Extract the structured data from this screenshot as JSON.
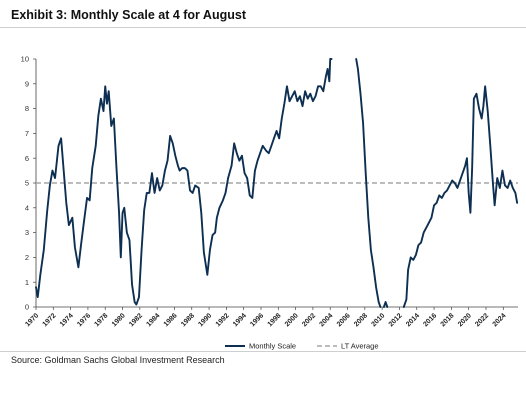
{
  "title": "Exhibit 3: Monthly Scale at 4 for August",
  "source": "Source: Goldman Sachs Global Investment Research",
  "colors": {
    "series": "#0d2f52",
    "average": "#a6a6a6",
    "axis": "#444444"
  },
  "chart_data": {
    "type": "line",
    "title": "",
    "xlabel": "",
    "ylabel": "",
    "xlim": [
      1970,
      2025.7
    ],
    "ylim": [
      0,
      10
    ],
    "grid": false,
    "legend": "bottom-center",
    "y_ticks": [
      "0",
      "1",
      "2",
      "3",
      "4",
      "5",
      "6",
      "7",
      "8",
      "9",
      "10"
    ],
    "x_ticks": [
      "1970",
      "1972",
      "1974",
      "1976",
      "1978",
      "1980",
      "1982",
      "1984",
      "1986",
      "1988",
      "1990",
      "1992",
      "1994",
      "1996",
      "1998",
      "2000",
      "2002",
      "2004",
      "2006",
      "2008",
      "2010",
      "2012",
      "2014",
      "2016",
      "2018",
      "2020",
      "2022",
      "2024"
    ],
    "series": [
      {
        "name": "Monthly Scale",
        "style": "solid",
        "x": [
          1970.0,
          1970.2,
          1970.5,
          1970.9,
          1971.3,
          1971.6,
          1971.9,
          1972.2,
          1972.6,
          1972.9,
          1973.2,
          1973.5,
          1973.8,
          1974.2,
          1974.5,
          1974.9,
          1975.2,
          1975.6,
          1975.9,
          1976.2,
          1976.5,
          1976.9,
          1977.2,
          1977.5,
          1977.8,
          1978.0,
          1978.2,
          1978.4,
          1978.7,
          1979.0,
          1979.3,
          1979.6,
          1979.8,
          1980.0,
          1980.2,
          1980.5,
          1980.8,
          1981.1,
          1981.4,
          1981.6,
          1981.9,
          1982.2,
          1982.5,
          1982.8,
          1983.1,
          1983.4,
          1983.7,
          1984.0,
          1984.3,
          1984.6,
          1984.9,
          1985.2,
          1985.5,
          1985.8,
          1986.1,
          1986.4,
          1986.6,
          1986.9,
          1987.2,
          1987.5,
          1987.8,
          1988.1,
          1988.4,
          1988.8,
          1989.1,
          1989.4,
          1989.8,
          1990.1,
          1990.4,
          1990.7,
          1990.9,
          1991.2,
          1991.6,
          1991.9,
          1992.2,
          1992.6,
          1992.9,
          1993.2,
          1993.5,
          1993.8,
          1994.1,
          1994.4,
          1994.7,
          1995.0,
          1995.3,
          1995.6,
          1995.9,
          1996.2,
          1996.6,
          1996.9,
          1997.2,
          1997.5,
          1997.8,
          1998.1,
          1998.4,
          1998.7,
          1999.0,
          1999.3,
          1999.6,
          1999.9,
          2000.2,
          2000.5,
          2000.8,
          2001.1,
          2001.4,
          2001.7,
          2002.0,
          2002.3,
          2002.6,
          2002.9,
          2003.2,
          2003.5,
          2003.7,
          2003.9,
          2004.0,
          2004.15
        ],
        "y": [
          0.8,
          0.4,
          1.3,
          2.3,
          3.9,
          4.9,
          5.5,
          5.2,
          6.5,
          6.8,
          5.5,
          4.2,
          3.3,
          3.6,
          2.4,
          1.6,
          2.5,
          3.6,
          4.4,
          4.3,
          5.6,
          6.5,
          7.7,
          8.4,
          7.9,
          8.9,
          8.2,
          8.7,
          7.3,
          7.6,
          5.6,
          3.8,
          2.0,
          3.8,
          4.0,
          3.0,
          2.7,
          0.9,
          0.2,
          0.1,
          0.4,
          2.3,
          3.9,
          4.6,
          4.6,
          5.4,
          4.6,
          5.2,
          4.7,
          4.9,
          5.5,
          5.9,
          6.9,
          6.6,
          6.1,
          5.7,
          5.5,
          5.6,
          5.6,
          5.5,
          4.7,
          4.6,
          4.9,
          4.8,
          3.8,
          2.2,
          1.3,
          2.3,
          2.9,
          3.0,
          3.6,
          4.0,
          4.3,
          4.6,
          5.2,
          5.7,
          6.6,
          6.2,
          5.9,
          6.1,
          5.4,
          5.2,
          4.5,
          4.4,
          5.5,
          5.9,
          6.2,
          6.5,
          6.3,
          6.2,
          6.5,
          6.8,
          7.1,
          6.8,
          7.6,
          8.2,
          8.9,
          8.3,
          8.5,
          8.7,
          8.3,
          8.5,
          8.1,
          8.7,
          8.4,
          8.6,
          8.3,
          8.5,
          8.9,
          8.9,
          8.7,
          9.3,
          9.6,
          9.1,
          10.0,
          10.0
        ]
      },
      {
        "name": "Monthly Scale",
        "style": "solid",
        "x": [
          2007.0,
          2007.2,
          2007.5,
          2007.8,
          2008.1,
          2008.4,
          2008.7,
          2009.0,
          2009.3,
          2009.6,
          2009.8
        ],
        "y": [
          10.0,
          9.6,
          8.6,
          7.4,
          5.4,
          3.6,
          2.3,
          1.6,
          0.8,
          0.2,
          0.0
        ]
      },
      {
        "name": "Monthly Scale",
        "style": "solid",
        "x": [
          2010.2,
          2010.4,
          2010.6
        ],
        "y": [
          0.0,
          0.2,
          0.0
        ]
      },
      {
        "name": "Monthly Scale",
        "style": "solid",
        "x": [
          2012.5,
          2012.8,
          2013.0,
          2013.3,
          2013.6,
          2013.9,
          2014.2,
          2014.5,
          2014.8,
          2015.1,
          2015.4,
          2015.7,
          2016.0,
          2016.3,
          2016.6,
          2016.9,
          2017.2,
          2017.5,
          2017.8,
          2018.1,
          2018.4,
          2018.7,
          2019.0,
          2019.3,
          2019.6,
          2019.8,
          2020.0,
          2020.2,
          2020.4,
          2020.6,
          2020.9,
          2021.2,
          2021.5,
          2021.7,
          2021.9,
          2022.2,
          2022.5,
          2022.8,
          2023.0,
          2023.3,
          2023.6,
          2023.9,
          2024.2,
          2024.5,
          2024.8,
          2025.1,
          2025.4,
          2025.6
        ],
        "y": [
          0.0,
          0.3,
          1.5,
          2.0,
          1.9,
          2.1,
          2.5,
          2.6,
          3.0,
          3.2,
          3.4,
          3.6,
          4.1,
          4.2,
          4.5,
          4.4,
          4.6,
          4.7,
          4.9,
          5.1,
          5.0,
          4.8,
          5.1,
          5.4,
          5.7,
          6.0,
          4.6,
          3.8,
          5.6,
          8.4,
          8.6,
          8.0,
          7.6,
          8.1,
          8.9,
          7.9,
          6.5,
          5.0,
          4.1,
          5.2,
          4.8,
          5.5,
          4.9,
          4.8,
          5.1,
          4.8,
          4.6,
          4.2
        ]
      },
      {
        "name": "LT Average",
        "style": "dashed",
        "x": [
          1970,
          2025.7
        ],
        "y": [
          5.0,
          5.0
        ]
      }
    ]
  },
  "legend": [
    {
      "label": "Monthly Scale",
      "style": "solid"
    },
    {
      "label": "LT Average",
      "style": "dashed"
    }
  ]
}
